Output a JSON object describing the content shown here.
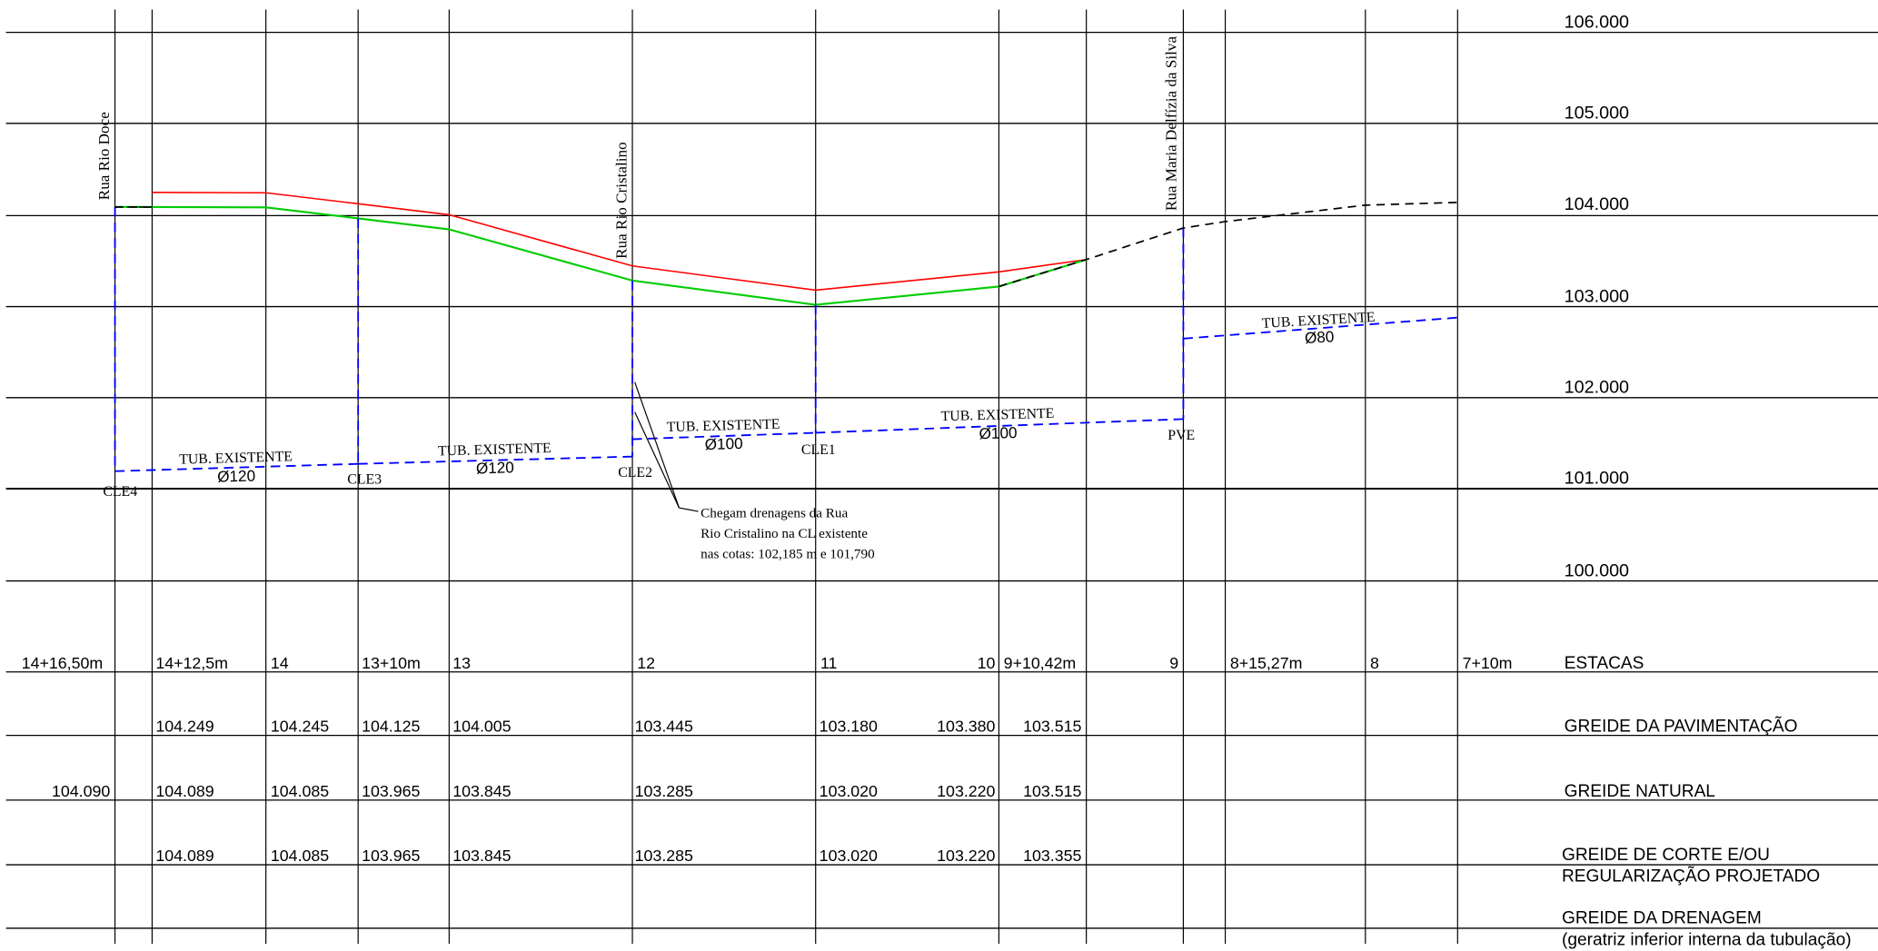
{
  "colors": {
    "pavement": "#ff0000",
    "natural": "#00cc00",
    "drainage": "#0000ff",
    "terrain": "#000000",
    "grid": "#000000"
  },
  "elevation_labels": [
    "106.000",
    "105.000",
    "104.000",
    "103.000",
    "102.000",
    "101.000",
    "100.000"
  ],
  "streets": [
    "Rua Rio Doce",
    "Rua Rio Cristalino",
    "Rua Maria Delfízia da Silva"
  ],
  "pipes": [
    {
      "label": "TUB. EXISTENTE",
      "diameter": "Ø120"
    },
    {
      "label": "TUB. EXISTENTE",
      "diameter": "Ø120"
    },
    {
      "label": "TUB. EXISTENTE",
      "diameter": "Ø100"
    },
    {
      "label": "TUB. EXISTENTE",
      "diameter": "Ø100"
    },
    {
      "label": "TUB. EXISTENTE",
      "diameter": "Ø80"
    }
  ],
  "nodes": [
    "CLE4",
    "CLE3",
    "CLE2",
    "CLE1",
    "PVE"
  ],
  "note": {
    "lines": [
      "Chegam drenagens da Rua",
      "Rio Cristalino na CL existente",
      "nas cotas: 102,185 m e 101,790"
    ]
  },
  "table": {
    "row_labels": {
      "estacas": "ESTACAS",
      "pavimentacao": "GREIDE DA PAVIMENTAÇÃO",
      "natural": "GREIDE NATURAL",
      "corte_1": "GREIDE DE CORTE E/OU",
      "corte_2": "REGULARIZAÇÃO PROJETADO",
      "drenagem_1": "GREIDE DA DRENAGEM",
      "drenagem_2": "(geratriz inferior interna da tubulação)"
    },
    "estacas": [
      "14+16,50m",
      "14+12,5m",
      "14",
      "13+10m",
      "13",
      "12",
      "11",
      "10",
      "9+10,42m",
      "9",
      "8+15,27m",
      "8",
      "7+10m"
    ],
    "pavimentacao": [
      "104.249",
      "104.245",
      "104.125",
      "104.005",
      "103.445",
      "103.180",
      "103.380",
      "103.515"
    ],
    "natural": [
      "104.090",
      "104.089",
      "104.085",
      "103.965",
      "103.845",
      "103.285",
      "103.020",
      "103.220",
      "103.515"
    ],
    "corte": [
      "104.089",
      "104.085",
      "103.965",
      "103.845",
      "103.285",
      "103.020",
      "103.220",
      "103.355"
    ]
  },
  "chart_data": {
    "type": "line",
    "title": "",
    "xlabel": "ESTACAS",
    "ylabel": "",
    "ylim": [
      100,
      106
    ],
    "y_ticks": [
      100,
      101,
      102,
      103,
      104,
      105,
      106
    ],
    "grid": true,
    "categories": [
      "14+16,50m",
      "14+12,5m",
      "14",
      "13+10m",
      "13",
      "12",
      "11",
      "10",
      "9+10,42m",
      "9",
      "8+15,27m",
      "8",
      "7+10m"
    ],
    "series": [
      {
        "name": "GREIDE DA PAVIMENTAÇÃO",
        "values": [
          null,
          104.249,
          104.245,
          104.125,
          104.005,
          103.445,
          103.18,
          103.38,
          103.515,
          null,
          null,
          null,
          null
        ]
      },
      {
        "name": "GREIDE NATURAL",
        "values": [
          104.09,
          104.089,
          104.085,
          103.965,
          103.845,
          103.285,
          103.02,
          103.22,
          103.515,
          null,
          null,
          null,
          null
        ]
      },
      {
        "name": "GREIDE DE CORTE E/OU REGULARIZAÇÃO PROJETADO",
        "values": [
          null,
          104.089,
          104.085,
          103.965,
          103.845,
          103.285,
          103.02,
          103.22,
          103.355,
          null,
          null,
          null,
          null
        ]
      },
      {
        "name": "",
        "values": [
          104.09,
          104.089,
          null,
          null,
          null,
          null,
          null,
          103.22,
          103.515,
          103.86,
          103.93,
          104.11,
          104.14
        ]
      }
    ],
    "drainage": {
      "nodes": [
        {
          "name": "CLE4",
          "station": "14+16,50m",
          "invert": 101.2
        },
        {
          "name": "CLE3",
          "station": "13+10m",
          "invert": 101.28
        },
        {
          "name": "CLE2",
          "station": "12",
          "invert": 101.36,
          "top_step": 101.55
        },
        {
          "name": "CLE1",
          "station": "11",
          "invert": 101.62
        },
        {
          "name": "PVE",
          "station": "9",
          "invert": 101.77
        }
      ],
      "ramp": {
        "from_station": "9",
        "from": 102.65,
        "to_station": "7+10m",
        "to": 102.88
      }
    }
  }
}
